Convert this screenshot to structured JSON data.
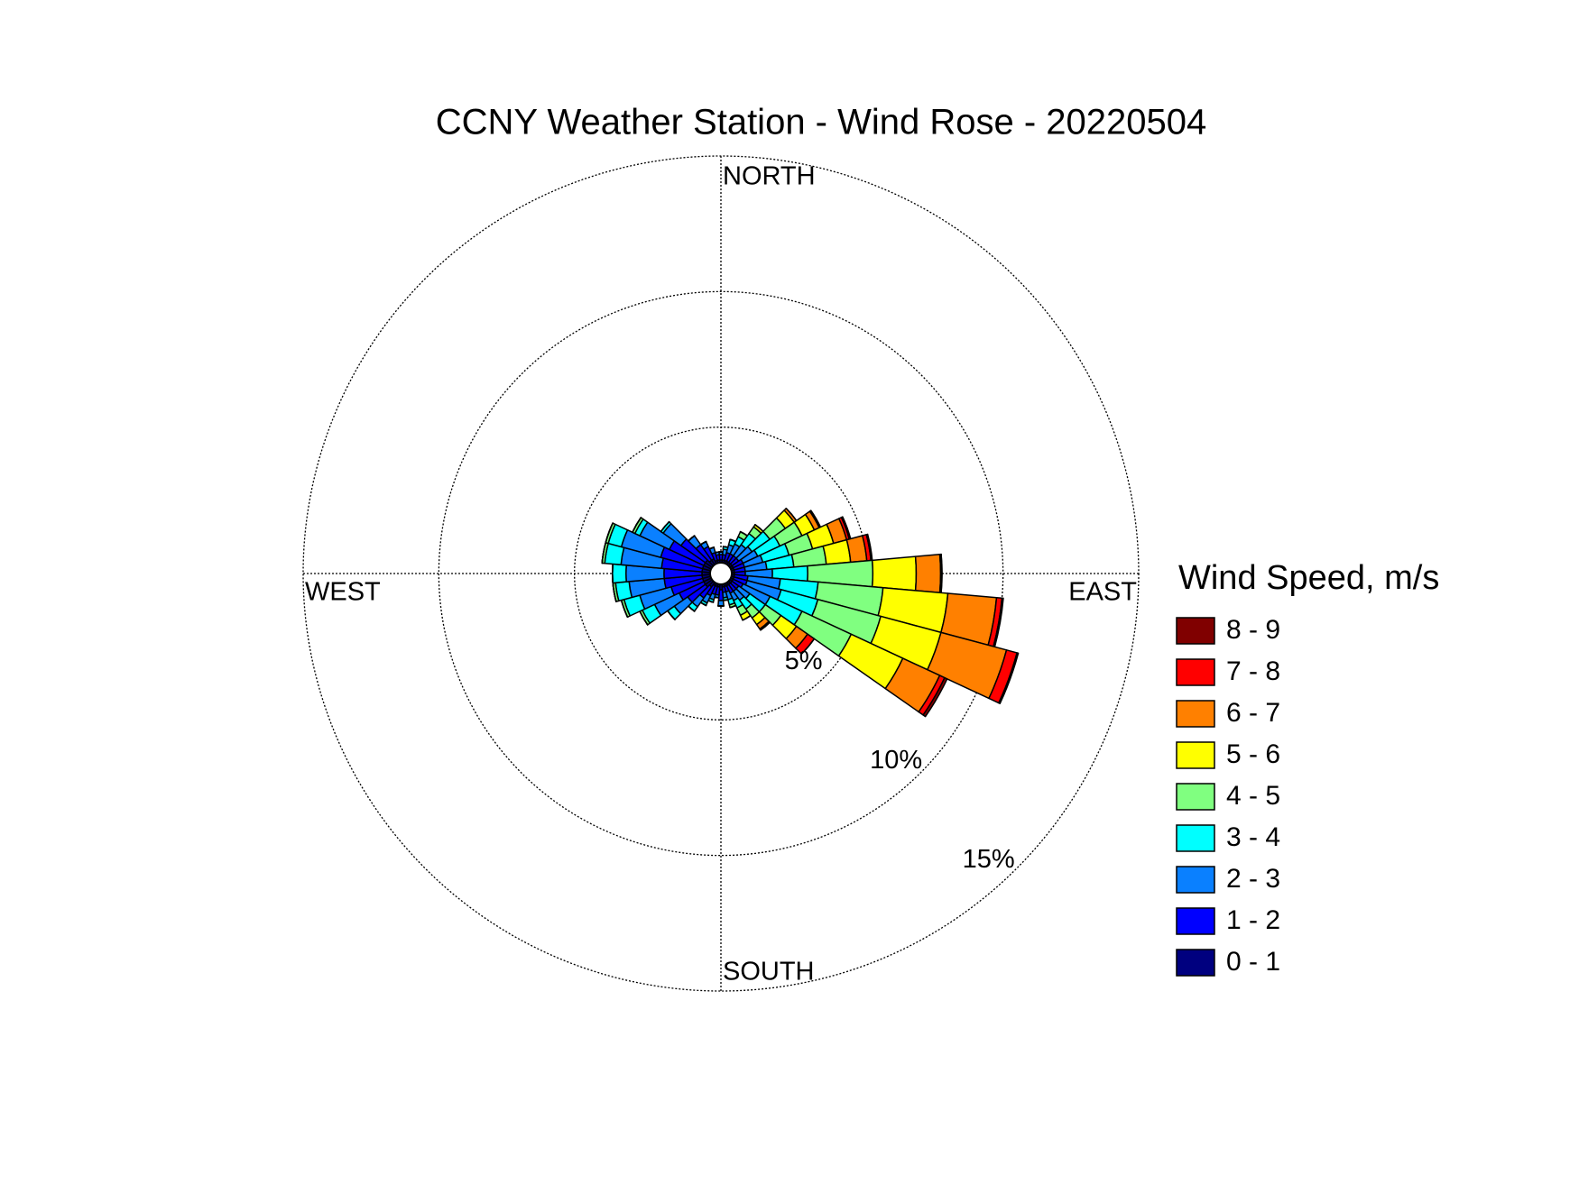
{
  "chart_data": {
    "type": "windrose",
    "title": "CCNY Weather Station - Wind Rose - 20220504",
    "legend_title": "Wind Speed, m/s",
    "compass_labels": {
      "north": "NORTH",
      "east": "EAST",
      "south": "SOUTH",
      "west": "WEST"
    },
    "x": [
      0,
      10,
      20,
      30,
      40,
      50,
      60,
      70,
      80,
      90,
      100,
      110,
      120,
      130,
      140,
      150,
      160,
      170,
      180,
      190,
      200,
      210,
      220,
      230,
      240,
      250,
      260,
      270,
      280,
      290,
      300,
      310,
      320,
      330,
      340,
      350
    ],
    "rlim": [
      0,
      15
    ],
    "rticks": [
      {
        "value": 5,
        "label": "5%"
      },
      {
        "value": 10,
        "label": "10%"
      },
      {
        "value": 15,
        "label": "15%"
      }
    ],
    "grid": true,
    "legend": "right",
    "series": [
      {
        "name": "0 - 1",
        "color": "#00007f",
        "values": [
          0.1,
          0.1,
          0.1,
          0.1,
          0.1,
          0.1,
          0.1,
          0.1,
          0.1,
          0.1,
          0.1,
          0.1,
          0.1,
          0.1,
          0.1,
          0.1,
          0.1,
          0.1,
          0.2,
          0.1,
          0.1,
          0.1,
          0.2,
          0.3,
          0.3,
          0.3,
          0.3,
          0.3,
          0.3,
          0.3,
          0.3,
          0.3,
          0.2,
          0.2,
          0.1,
          0.1
        ]
      },
      {
        "name": "1 - 2",
        "color": "#0000ff",
        "values": [
          0.2,
          0.2,
          0.3,
          0.3,
          0.3,
          0.3,
          0.4,
          0.4,
          0.4,
          0.4,
          0.5,
          0.5,
          0.4,
          0.3,
          0.3,
          0.3,
          0.2,
          0.2,
          0.4,
          0.3,
          0.3,
          0.4,
          0.5,
          0.8,
          1.0,
          1.2,
          1.4,
          1.4,
          1.5,
          1.6,
          1.4,
          1.1,
          0.7,
          0.5,
          0.3,
          0.2
        ]
      },
      {
        "name": "2 - 3",
        "color": "#0a80ff",
        "values": [
          0.1,
          0.2,
          0.3,
          0.4,
          0.5,
          0.6,
          0.6,
          0.7,
          0.8,
          1.0,
          1.2,
          1.3,
          1.1,
          0.5,
          0.4,
          0.3,
          0.3,
          0.2,
          0.2,
          0.1,
          0.2,
          0.3,
          0.4,
          0.6,
          1.0,
          1.2,
          1.3,
          1.4,
          1.5,
          1.5,
          1.2,
          0.8,
          0.4,
          0.2,
          0.2,
          0.1
        ]
      },
      {
        "name": "3 - 4",
        "color": "#00ffff",
        "values": [
          0,
          0.1,
          0.2,
          0.3,
          0.5,
          0.8,
          0.9,
          1.0,
          1.0,
          1.3,
          1.4,
          1.4,
          1.3,
          0.7,
          0.4,
          0.3,
          0.2,
          0.1,
          0,
          0,
          0.1,
          0.1,
          0.2,
          0.3,
          0.5,
          0.6,
          0.5,
          0.5,
          0.6,
          0.5,
          0.2,
          0.1,
          0,
          0,
          0,
          0
        ]
      },
      {
        "name": "4 - 5",
        "color": "#80ff80",
        "values": [
          0,
          0,
          0,
          0.2,
          0.3,
          0.7,
          0.9,
          0.9,
          1.2,
          2.4,
          2.4,
          2.4,
          2.0,
          0.7,
          0.4,
          0.3,
          0.1,
          0,
          0,
          0,
          0,
          0,
          0,
          0,
          0.1,
          0.1,
          0.1,
          0,
          0.1,
          0.1,
          0.1,
          0,
          0,
          0,
          0,
          0
        ]
      },
      {
        "name": "5 - 6",
        "color": "#ffff00",
        "values": [
          0,
          0,
          0,
          0,
          0.1,
          0.4,
          0.5,
          0.8,
          0.9,
          1.6,
          2.4,
          2.3,
          2.1,
          0.7,
          0.3,
          0.2,
          0,
          0,
          0,
          0,
          0,
          0,
          0,
          0,
          0,
          0,
          0,
          0,
          0,
          0,
          0,
          0,
          0,
          0,
          0,
          0
        ]
      },
      {
        "name": "6 - 7",
        "color": "#ff8000",
        "values": [
          0,
          0,
          0,
          0,
          0,
          0.1,
          0.2,
          0.5,
          0.6,
          0.9,
          1.8,
          2.5,
          1.5,
          0.5,
          0.2,
          0,
          0,
          0,
          0,
          0,
          0,
          0,
          0,
          0,
          0,
          0,
          0,
          0,
          0,
          0,
          0,
          0,
          0,
          0,
          0,
          0
        ]
      },
      {
        "name": "7 - 8",
        "color": "#ff0000",
        "values": [
          0,
          0,
          0,
          0,
          0,
          0,
          0.05,
          0.1,
          0.15,
          0.05,
          0.2,
          0.4,
          0.2,
          0.3,
          0.05,
          0,
          0,
          0,
          0,
          0,
          0,
          0,
          0,
          0,
          0,
          0,
          0,
          0,
          0,
          0,
          0,
          0,
          0,
          0,
          0,
          0
        ]
      },
      {
        "name": "8 - 9",
        "color": "#800000",
        "values": [
          0,
          0,
          0,
          0,
          0,
          0,
          0,
          0.05,
          0.05,
          0,
          0.05,
          0.05,
          0.1,
          0,
          0,
          0,
          0,
          0,
          0,
          0,
          0,
          0,
          0,
          0,
          0,
          0,
          0,
          0,
          0,
          0,
          0,
          0,
          0,
          0,
          0,
          0
        ]
      }
    ]
  }
}
